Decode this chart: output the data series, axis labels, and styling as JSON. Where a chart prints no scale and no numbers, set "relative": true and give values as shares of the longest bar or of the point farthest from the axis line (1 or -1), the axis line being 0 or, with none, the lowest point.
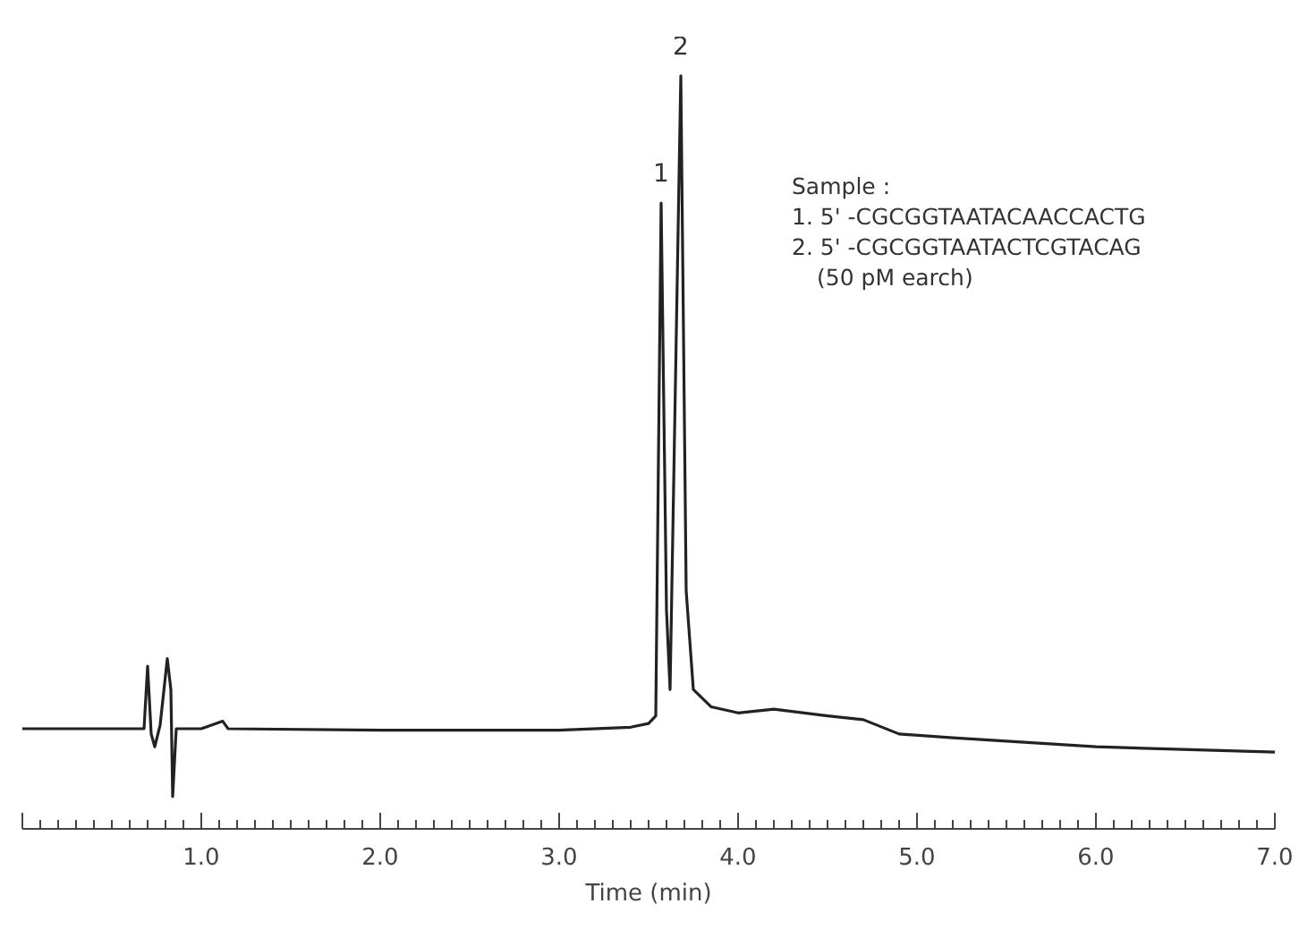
{
  "chart_data": {
    "type": "line",
    "relative": true,
    "xlabel": "Time (min)",
    "x": [
      0.0,
      0.5,
      0.68,
      0.7,
      0.72,
      0.74,
      0.77,
      0.81,
      0.83,
      0.84,
      0.86,
      1.0,
      1.12,
      1.15,
      2.0,
      3.0,
      3.4,
      3.5,
      3.54,
      3.57,
      3.6,
      3.62,
      3.68,
      3.71,
      3.75,
      3.85,
      4.0,
      4.2,
      4.5,
      4.7,
      4.9,
      5.2,
      6.0,
      7.0
    ],
    "series": [
      {
        "color": "#222222",
        "values": [
          0.133,
          0.133,
          0.133,
          0.216,
          0.126,
          0.109,
          0.138,
          0.226,
          0.185,
          0.043,
          0.133,
          0.133,
          0.143,
          0.133,
          0.131,
          0.131,
          0.135,
          0.14,
          0.15,
          0.831,
          0.29,
          0.185,
          1.0,
          0.316,
          0.185,
          0.162,
          0.154,
          0.159,
          0.15,
          0.145,
          0.126,
          0.121,
          0.109,
          0.102
        ]
      }
    ],
    "xlim": [
      0,
      7.0
    ],
    "xticks": [
      {
        "value": 0,
        "label": null
      },
      {
        "value": 1,
        "label": "1.0"
      },
      {
        "value": 2,
        "label": "2.0"
      },
      {
        "value": 3,
        "label": "3.0"
      },
      {
        "value": 4,
        "label": "4.0"
      },
      {
        "value": 5,
        "label": "5.0"
      },
      {
        "value": 6,
        "label": "6.0"
      },
      {
        "value": 7,
        "label": "7.0"
      }
    ],
    "tick_labels": "x",
    "grid": false,
    "annotations": [
      {
        "text": "1",
        "x": 3.57,
        "y": 0.831
      },
      {
        "text": "2",
        "x": 3.68,
        "y": 1.0
      },
      "Sample :",
      "1. 5' -CGCGGTAATACAACCACTG",
      "2. 5' -CGCGGTAATACTCGTACAG",
      "(50 pM earch)"
    ]
  }
}
